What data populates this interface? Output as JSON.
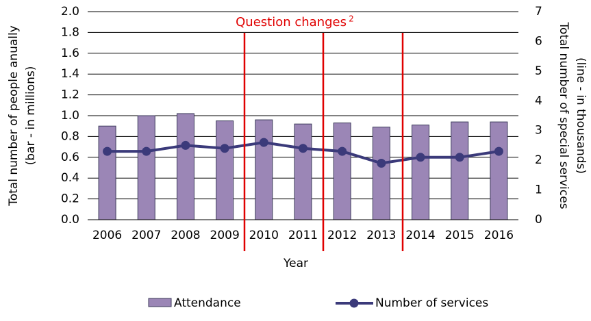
{
  "chart_data": {
    "type": "bar_line",
    "xlabel": "Year",
    "ylabel": [
      "Total number of people anually",
      "(bar - in millions)"
    ],
    "y2label": [
      "Total number of special services",
      "(line - in thousands)"
    ],
    "annotation": "Question changes",
    "annotation_note": "2",
    "categories": [
      "2006",
      "2007",
      "2008",
      "2009",
      "2010",
      "2011",
      "2012",
      "2013",
      "2014",
      "2015",
      "2016"
    ],
    "series": [
      {
        "name": "Attendance",
        "color": "#9b86b6",
        "values": [
          0.9,
          1.0,
          1.02,
          0.95,
          0.96,
          0.92,
          0.93,
          0.89,
          0.91,
          0.94,
          0.94
        ]
      },
      {
        "name": "Number of services",
        "color": "#3b3a7a",
        "axis": "y2",
        "values": [
          2.3,
          2.3,
          2.5,
          2.4,
          2.6,
          2.4,
          2.3,
          1.9,
          2.1,
          2.1,
          2.3
        ]
      }
    ],
    "ylim": [
      0,
      2
    ],
    "yticks": [
      {
        "value": 0,
        "label": "0.0"
      },
      {
        "value": 0.2,
        "label": "0.2"
      },
      {
        "value": 0.4,
        "label": "0.4"
      },
      {
        "value": 0.6,
        "label": "0.6"
      },
      {
        "value": 0.8,
        "label": "0.8"
      },
      {
        "value": 1,
        "label": "1.0"
      },
      {
        "value": 1.2,
        "label": "1.2"
      },
      {
        "value": 1.4,
        "label": "1.4"
      },
      {
        "value": 1.6,
        "label": "1.6"
      },
      {
        "value": 1.8,
        "label": "1.8"
      },
      {
        "value": 2,
        "label": "2.0"
      }
    ],
    "y2lim": [
      0,
      7
    ],
    "y2ticks": [
      0,
      1,
      2,
      3,
      4,
      5,
      6,
      7
    ],
    "grid": true,
    "legend": "bottom"
  }
}
